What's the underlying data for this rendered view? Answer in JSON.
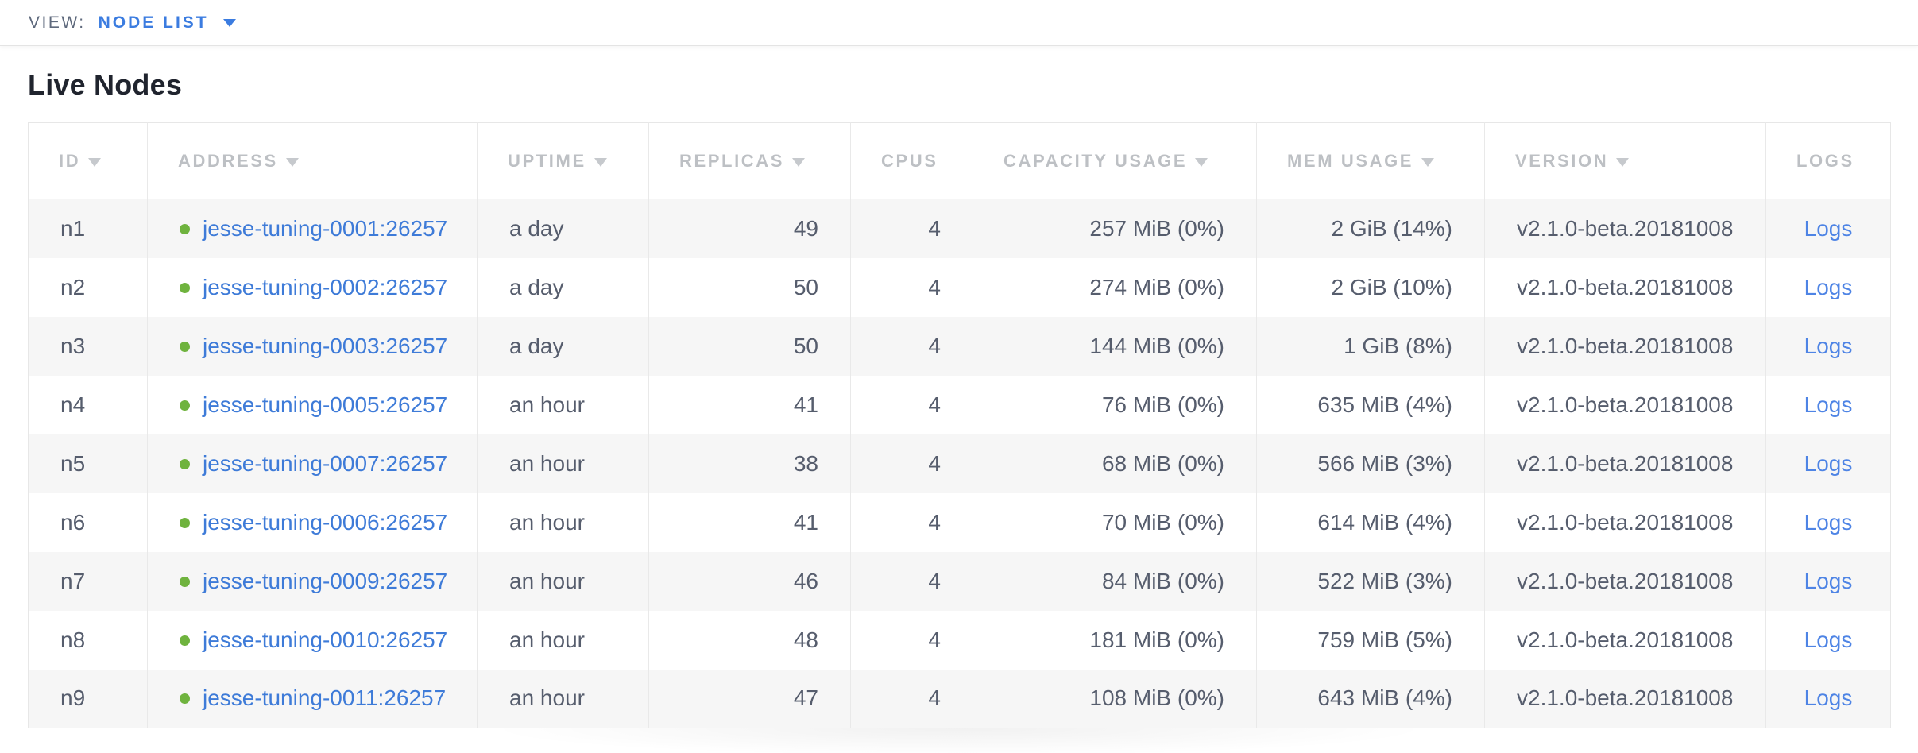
{
  "view_bar": {
    "label": "VIEW:",
    "selected_view": "NODE LIST"
  },
  "page_title": "Live Nodes",
  "table": {
    "columns": [
      {
        "key": "id",
        "label": "ID",
        "sortable": true,
        "align": "left"
      },
      {
        "key": "address",
        "label": "ADDRESS",
        "sortable": true,
        "align": "left"
      },
      {
        "key": "uptime",
        "label": "UPTIME",
        "sortable": true,
        "align": "left"
      },
      {
        "key": "replicas",
        "label": "REPLICAS",
        "sortable": true,
        "align": "right"
      },
      {
        "key": "cpus",
        "label": "CPUS",
        "sortable": false,
        "align": "right"
      },
      {
        "key": "capacity",
        "label": "CAPACITY USAGE",
        "sortable": true,
        "align": "right"
      },
      {
        "key": "mem",
        "label": "MEM USAGE",
        "sortable": true,
        "align": "right"
      },
      {
        "key": "version",
        "label": "VERSION",
        "sortable": true,
        "align": "left"
      },
      {
        "key": "logs",
        "label": "LOGS",
        "sortable": false,
        "align": "center"
      }
    ],
    "rows": [
      {
        "id": "n1",
        "address": "jesse-tuning-0001:26257",
        "status": "healthy",
        "uptime": "a day",
        "replicas": "49",
        "cpus": "4",
        "capacity": "257 MiB (0%)",
        "mem": "2 GiB (14%)",
        "version": "v2.1.0-beta.20181008",
        "logs": "Logs"
      },
      {
        "id": "n2",
        "address": "jesse-tuning-0002:26257",
        "status": "healthy",
        "uptime": "a day",
        "replicas": "50",
        "cpus": "4",
        "capacity": "274 MiB (0%)",
        "mem": "2 GiB (10%)",
        "version": "v2.1.0-beta.20181008",
        "logs": "Logs"
      },
      {
        "id": "n3",
        "address": "jesse-tuning-0003:26257",
        "status": "healthy",
        "uptime": "a day",
        "replicas": "50",
        "cpus": "4",
        "capacity": "144 MiB (0%)",
        "mem": "1 GiB (8%)",
        "version": "v2.1.0-beta.20181008",
        "logs": "Logs"
      },
      {
        "id": "n4",
        "address": "jesse-tuning-0005:26257",
        "status": "healthy",
        "uptime": "an hour",
        "replicas": "41",
        "cpus": "4",
        "capacity": "76 MiB (0%)",
        "mem": "635 MiB (4%)",
        "version": "v2.1.0-beta.20181008",
        "logs": "Logs"
      },
      {
        "id": "n5",
        "address": "jesse-tuning-0007:26257",
        "status": "healthy",
        "uptime": "an hour",
        "replicas": "38",
        "cpus": "4",
        "capacity": "68 MiB (0%)",
        "mem": "566 MiB (3%)",
        "version": "v2.1.0-beta.20181008",
        "logs": "Logs"
      },
      {
        "id": "n6",
        "address": "jesse-tuning-0006:26257",
        "status": "healthy",
        "uptime": "an hour",
        "replicas": "41",
        "cpus": "4",
        "capacity": "70 MiB (0%)",
        "mem": "614 MiB (4%)",
        "version": "v2.1.0-beta.20181008",
        "logs": "Logs"
      },
      {
        "id": "n7",
        "address": "jesse-tuning-0009:26257",
        "status": "healthy",
        "uptime": "an hour",
        "replicas": "46",
        "cpus": "4",
        "capacity": "84 MiB (0%)",
        "mem": "522 MiB (3%)",
        "version": "v2.1.0-beta.20181008",
        "logs": "Logs"
      },
      {
        "id": "n8",
        "address": "jesse-tuning-0010:26257",
        "status": "healthy",
        "uptime": "an hour",
        "replicas": "48",
        "cpus": "4",
        "capacity": "181 MiB (0%)",
        "mem": "759 MiB (5%)",
        "version": "v2.1.0-beta.20181008",
        "logs": "Logs"
      },
      {
        "id": "n9",
        "address": "jesse-tuning-0011:26257",
        "status": "healthy",
        "uptime": "an hour",
        "replicas": "47",
        "cpus": "4",
        "capacity": "108 MiB (0%)",
        "mem": "643 MiB (4%)",
        "version": "v2.1.0-beta.20181008",
        "logs": "Logs"
      }
    ]
  },
  "colors": {
    "accent_blue": "#3b7ce0",
    "link_blue": "#3e7bd8",
    "logs_blue": "#4e84e5",
    "healthy_green": "#6fb33e",
    "header_gray": "#bdc0c4",
    "body_text": "#565d6d",
    "view_label_gray": "#5f6a7d",
    "stripe": "#f6f6f6",
    "divider": "#e4e4e4"
  }
}
